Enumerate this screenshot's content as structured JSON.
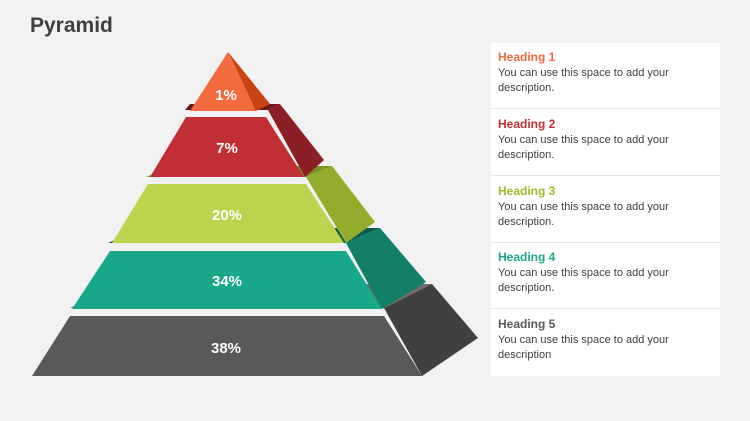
{
  "title": "Pyramid",
  "layers": [
    {
      "label": "1%",
      "front": "#f26a3d",
      "side": "#c94312",
      "top": "#a6350d"
    },
    {
      "label": "7%",
      "front": "#c12e36",
      "side": "#8c1f25",
      "top": "#6e181d"
    },
    {
      "label": "20%",
      "front": "#bad44d",
      "side": "#92ad2c",
      "top": "#7b9423"
    },
    {
      "label": "34%",
      "front": "#1aa88a",
      "side": "#137f68",
      "top": "#0e5e4d"
    },
    {
      "label": "38%",
      "front": "#595959",
      "side": "#404040",
      "top": "#6e6e6e"
    }
  ],
  "items": [
    {
      "heading": "Heading 1",
      "desc": "You can use this space to add your description.",
      "color": "#f26a3d"
    },
    {
      "heading": "Heading 2",
      "desc": "You can use this space to add your description.",
      "color": "#c12e36"
    },
    {
      "heading": "Heading 3",
      "desc": "You can use this space to add your description.",
      "color": "#9dbb2a"
    },
    {
      "heading": "Heading 4",
      "desc": "You can use this space to add your description.",
      "color": "#1aa88a"
    },
    {
      "heading": "Heading 5",
      "desc": "You can use this space to add your description",
      "color": "#595959"
    }
  ]
}
